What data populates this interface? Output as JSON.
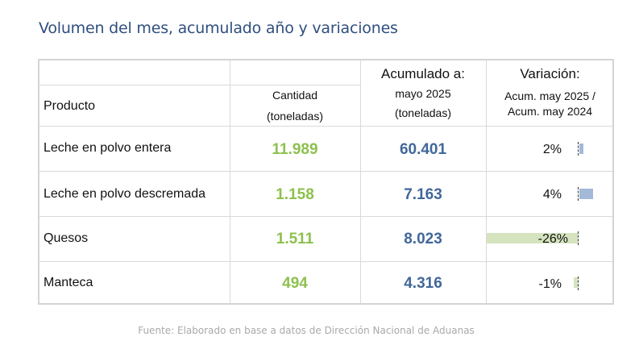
{
  "title": "Volumen del mes, acumulado año y variaciones",
  "table": {
    "headers": {
      "producto": "Producto",
      "cantidad_1": "Cantidad",
      "cantidad_2": "(toneladas)",
      "acumulado_1": "Acumulado a:",
      "acumulado_2": "mayo 2025",
      "acumulado_3": "(toneladas)",
      "variacion_1": "Variación:",
      "variacion_2": "Acum. may 2025 /",
      "variacion_3": "Acum. may 2024"
    },
    "rows": [
      {
        "producto": "Leche en polvo entera",
        "cantidad": "11.989",
        "acumulado": "60.401",
        "variacion": "2%",
        "variacion_value": 2
      },
      {
        "producto": "Leche en polvo descremada",
        "cantidad": "1.158",
        "acumulado": "7.163",
        "variacion": "4%",
        "variacion_value": 4
      },
      {
        "producto": "Quesos",
        "cantidad": "1.511",
        "acumulado": "8.023",
        "variacion": "-26%",
        "variacion_value": -26
      },
      {
        "producto": "Manteca",
        "cantidad": "494",
        "acumulado": "4.316",
        "variacion": "-1%",
        "variacion_value": -1
      }
    ]
  },
  "colors": {
    "title": "#2f4f7f",
    "cantidad": "#8dc04e",
    "acumulado": "#41679a",
    "bar_positive": "#a3b9d7",
    "bar_negative": "#d5e3bf"
  },
  "footer": "Fuente: Elaborado en base a datos de Dirección Nacional de Aduanas"
}
